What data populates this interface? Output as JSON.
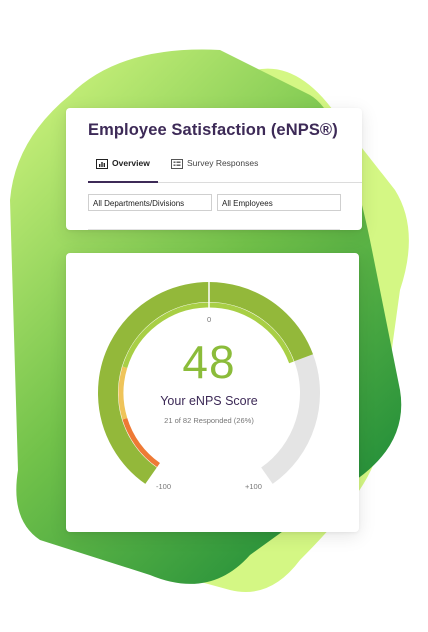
{
  "header": {
    "title": "Employee Satisfaction (eNPS®)",
    "tabs": [
      {
        "label": "Overview",
        "active": true,
        "icon": "bar-chart-icon"
      },
      {
        "label": "Survey Responses",
        "active": false,
        "icon": "list-icon"
      }
    ]
  },
  "filters": {
    "departments": "All Departments/Divisions",
    "employees": "All Employees"
  },
  "gauge": {
    "score": "48",
    "score_value": 48,
    "label": "Your eNPS Score",
    "subtext": "21 of 82 Responded (26%)",
    "min_label": "-100",
    "max_label": "+100",
    "zero_label": "0",
    "min_value": -100,
    "max_value": 100
  },
  "colors": {
    "accent": "#3d2a57",
    "score_green": "#8bbc3a",
    "promoter_green": "#93b83a",
    "passive_yellow": "#efc45a",
    "detractor_orange": "#ee7a35",
    "gauge_empty": "#e4e4e4",
    "bg_green_light": "#d6f584",
    "bg_green_dark": "#2f9a3a"
  }
}
